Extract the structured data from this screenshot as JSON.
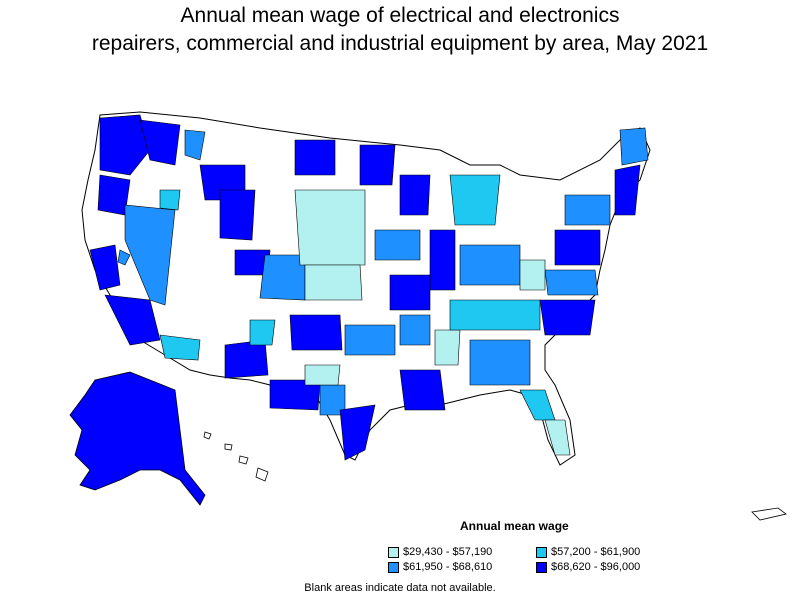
{
  "title": {
    "line1": "Annual mean wage of electrical and electronics",
    "line2": "repairers, commercial and industrial equipment by area, May 2021"
  },
  "legend": {
    "title": "Annual mean wage",
    "items": [
      {
        "label": "$29,430 - $57,190",
        "color": "#b3f0f0"
      },
      {
        "label": "$57,200 - $61,900",
        "color": "#1ec8f0"
      },
      {
        "label": "$61,950 - $68,610",
        "color": "#1e90ff"
      },
      {
        "label": "$68,620 - $96,000",
        "color": "#0000ff"
      }
    ]
  },
  "footnote": "Blank areas indicate data not available.",
  "colors": {
    "c1": "#b3f0f0",
    "c2": "#1ec8f0",
    "c3": "#1e90ff",
    "c4": "#0000ff",
    "outline": "#000000",
    "blank": "#ffffff"
  }
}
